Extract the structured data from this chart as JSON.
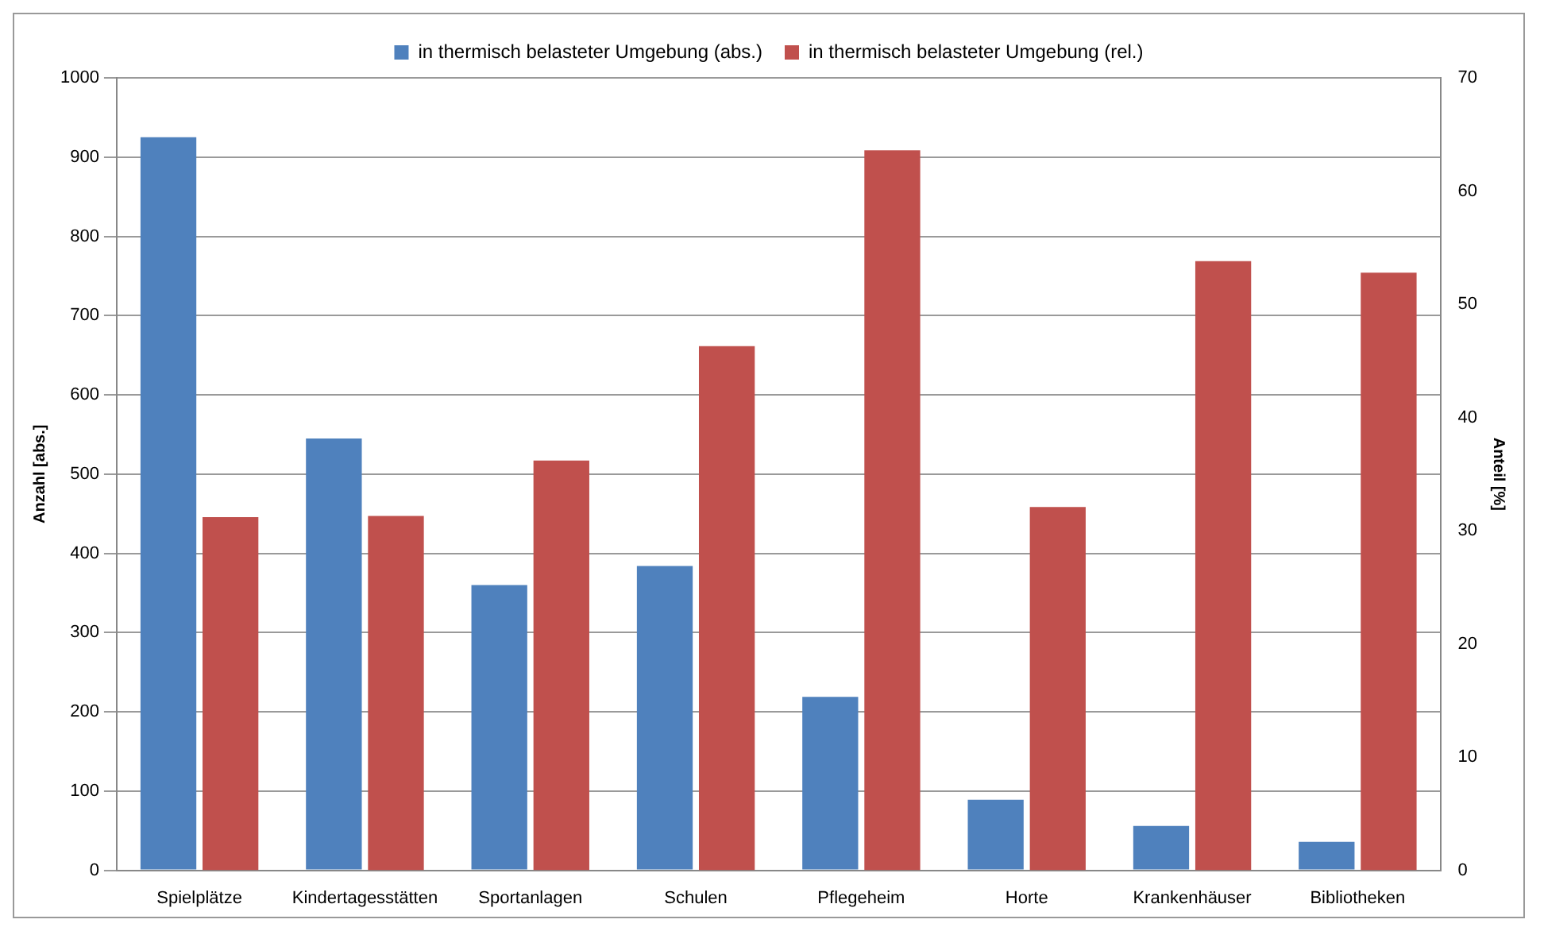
{
  "chart_data": {
    "type": "bar",
    "ylabel": "Anzahl [abs.]",
    "y2label": "Anteil [%]",
    "categories": [
      "Spielplätze",
      "Kindertagesstätten",
      "Sportanlagen",
      "Schulen",
      "Pflegeheim",
      "Horte",
      "Krankenhäuser",
      "Bibliotheken"
    ],
    "series": [
      {
        "name": "in thermisch belasteter Umgebung (abs.)",
        "color": "#4f81bd",
        "values": [
          925,
          545,
          360,
          384,
          219,
          89,
          56,
          36
        ]
      },
      {
        "name": "in thermisch belasteter Umgebung (rel.)",
        "color": "#c0504d",
        "axis": "y2",
        "values": [
          31.2,
          31.3,
          36.2,
          46.3,
          63.6,
          32.1,
          53.8,
          52.8
        ]
      }
    ],
    "ylim": [
      0,
      1000
    ],
    "yticks": [
      0,
      100,
      200,
      300,
      400,
      500,
      600,
      700,
      800,
      900,
      1000
    ],
    "y2lim": [
      0,
      70
    ],
    "y2ticks": [
      0,
      10,
      20,
      30,
      40,
      50,
      60,
      70
    ],
    "grid": "y",
    "legend": "top"
  }
}
